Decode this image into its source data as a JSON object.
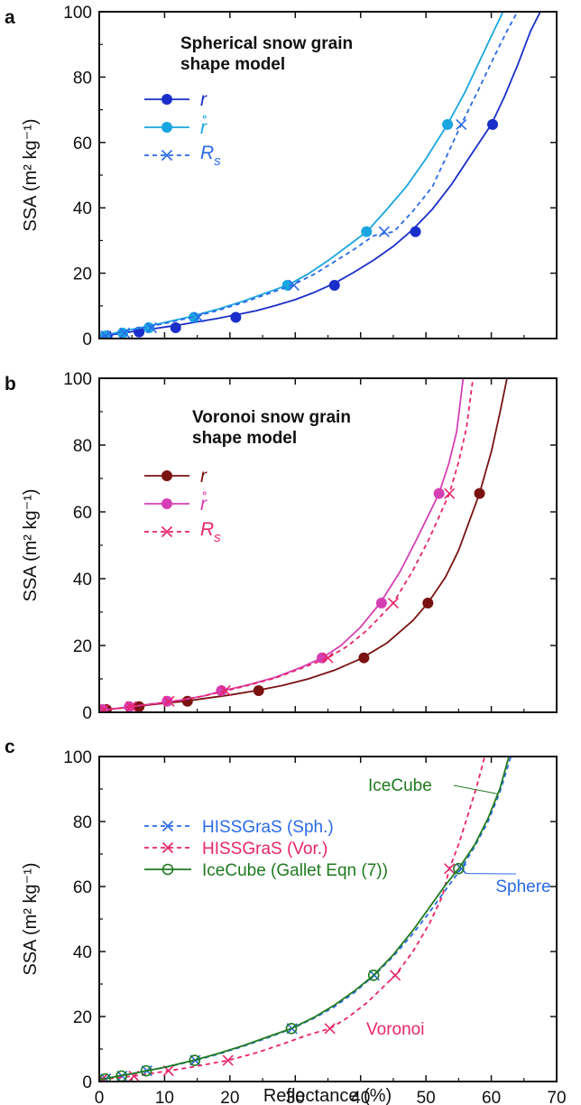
{
  "chart_data": [
    {
      "panel": "a",
      "type": "line",
      "title": "Spherical snow grain shape model",
      "title_lines": [
        "Spherical snow grain",
        "shape model"
      ],
      "xlabel": "",
      "ylabel": "SSA (m² kg⁻¹)",
      "xlim": [
        0,
        70
      ],
      "ylim": [
        0,
        100
      ],
      "y_ticks": [
        0,
        20,
        40,
        60,
        80,
        100
      ],
      "grid": false,
      "legend_position": "top-left",
      "series": [
        {
          "name": "r",
          "color": "#1a2fc9",
          "line_style": "solid",
          "marker": "filled-circle",
          "curve_x": [
            0.3,
            1,
            2,
            4,
            6,
            8,
            10,
            12,
            15,
            18,
            21,
            24,
            27,
            30,
            33,
            36,
            39,
            42,
            45,
            48,
            51,
            54,
            57,
            60,
            62,
            64,
            66,
            67.5
          ],
          "curve_y": [
            0.5,
            0.8,
            1.2,
            1.8,
            2.4,
            2.9,
            3.5,
            4.1,
            5.1,
            6.1,
            7.3,
            8.5,
            10.1,
            11.9,
            14.2,
            16.9,
            20.3,
            24.0,
            28.2,
            33.4,
            39.6,
            47.4,
            56.5,
            65.5,
            74.0,
            83.5,
            94.0,
            100
          ],
          "marker_x": [
            1.2,
            6.1,
            11.7,
            20.9,
            36.0,
            48.4,
            60.2
          ],
          "marker_y": [
            0.8,
            2.0,
            3.3,
            6.5,
            16.3,
            32.7,
            65.5
          ]
        },
        {
          "name": "r̊",
          "color": "#1aa6e0",
          "line_style": "solid",
          "marker": "filled-circle",
          "curve_x": [
            0.3,
            1,
            2,
            3,
            5,
            7,
            10,
            14,
            18,
            22,
            26,
            29,
            32,
            35,
            38,
            41,
            44,
            47,
            50,
            53.3,
            56,
            58,
            60,
            61.8
          ],
          "curve_y": [
            0.7,
            1.0,
            1.5,
            2.0,
            2.8,
            3.6,
            4.9,
            6.7,
            8.9,
            11.4,
            14.3,
            16.5,
            19.8,
            23.8,
            28.3,
            32.8,
            39.5,
            46.5,
            55.0,
            65.5,
            75.5,
            84.0,
            92.5,
            100
          ],
          "marker_x": [
            0.9,
            3.6,
            7.6,
            14.5,
            28.8,
            40.9,
            53.3
          ],
          "marker_y": [
            0.8,
            1.7,
            3.3,
            6.5,
            16.3,
            32.7,
            65.5
          ]
        },
        {
          "name": "Rs",
          "color": "#2a6ae8",
          "line_style": "dashed",
          "marker": "x",
          "curve_x": [
            0.3,
            1,
            2,
            3,
            5,
            7,
            10,
            14,
            18,
            22,
            26,
            29.5,
            33,
            36,
            39,
            42,
            45.1,
            48,
            51,
            55.4,
            58,
            60.5,
            62.5,
            64.0
          ],
          "curve_y": [
            0.6,
            0.9,
            1.4,
            1.9,
            2.7,
            3.4,
            4.6,
            6.4,
            8.5,
            11.0,
            13.8,
            16.3,
            19.8,
            23.5,
            27.3,
            31.5,
            32.7,
            39.0,
            46.5,
            65.5,
            76.0,
            86.5,
            94.5,
            100
          ],
          "marker_x": [
            1.0,
            3.9,
            8.0,
            15.2,
            29.8,
            43.6,
            55.4
          ],
          "marker_y": [
            0.8,
            1.7,
            3.3,
            6.5,
            16.3,
            32.7,
            65.5
          ]
        }
      ]
    },
    {
      "panel": "b",
      "type": "line",
      "title": "Voronoi snow grain shape model",
      "title_lines": [
        "Voronoi snow grain",
        "shape model"
      ],
      "xlabel": "",
      "ylabel": "SSA (m² kg⁻¹)",
      "xlim": [
        0,
        70
      ],
      "ylim": [
        0,
        100
      ],
      "y_ticks": [
        0,
        20,
        40,
        60,
        80,
        100
      ],
      "grid": false,
      "legend_position": "top-left",
      "series": [
        {
          "name": "r",
          "color": "#7a1212",
          "line_style": "solid",
          "marker": "filled-circle",
          "curve_x": [
            0.3,
            2,
            4,
            6,
            8,
            10,
            13,
            16,
            20,
            24,
            28,
            32,
            36,
            40,
            44,
            48,
            50.3,
            53,
            55,
            58.2,
            60,
            61.3,
            62.4
          ],
          "curve_y": [
            0.5,
            1.0,
            1.4,
            1.8,
            2.3,
            2.7,
            3.3,
            4.1,
            5.2,
            6.5,
            8.0,
            10.0,
            12.6,
            16.0,
            20.7,
            27.5,
            32.7,
            40.5,
            48.5,
            65.5,
            78.0,
            89.5,
            100
          ],
          "marker_x": [
            1.1,
            6.1,
            13.5,
            24.4,
            40.5,
            50.3,
            58.2
          ],
          "marker_y": [
            0.8,
            1.7,
            3.3,
            6.5,
            16.3,
            32.7,
            65.5
          ]
        },
        {
          "name": "r̊",
          "color": "#d63fb4",
          "line_style": "solid",
          "marker": "filled-circle",
          "curve_x": [
            0.3,
            2,
            4,
            6,
            9,
            12,
            16,
            19,
            23,
            27,
            31,
            34.1,
            37,
            40,
            43,
            46,
            48.5,
            50.5,
            52.0,
            53.5,
            54.7,
            55.7
          ],
          "curve_y": [
            0.5,
            1.0,
            1.5,
            2.0,
            2.7,
            3.5,
            4.9,
            6.5,
            8.3,
            10.5,
            13.5,
            16.3,
            20.0,
            25.5,
            32.7,
            42.0,
            51.5,
            59.5,
            65.5,
            74.5,
            84.0,
            100
          ],
          "marker_x": [
            0.5,
            4.6,
            10.4,
            18.7,
            34.1,
            43.2,
            52.0
          ],
          "marker_y": [
            0.8,
            1.7,
            3.3,
            6.5,
            16.3,
            32.7,
            65.5
          ]
        },
        {
          "name": "Rs",
          "color": "#e8246a",
          "line_style": "dashed",
          "marker": "x",
          "curve_x": [
            0.3,
            2,
            4,
            6,
            9,
            12,
            16,
            19.5,
            23,
            27,
            31,
            35.0,
            38,
            41,
            45.0,
            48,
            50.5,
            52,
            53.6,
            55.0,
            56.2,
            57.2
          ],
          "curve_y": [
            0.5,
            1.0,
            1.5,
            2.0,
            2.7,
            3.5,
            4.9,
            6.5,
            8.2,
            10.3,
            13.2,
            16.3,
            19.8,
            24.6,
            32.7,
            42.5,
            52.0,
            58.5,
            65.5,
            75.0,
            85.0,
            100
          ],
          "marker_x": [
            0.7,
            4.9,
            10.7,
            19.3,
            35.0,
            45.0,
            53.6
          ],
          "marker_y": [
            0.8,
            1.7,
            3.3,
            6.5,
            16.3,
            32.7,
            65.5
          ]
        }
      ]
    },
    {
      "panel": "c",
      "type": "line",
      "title": "",
      "xlabel": "Reflectance (%)",
      "ylabel": "SSA (m² kg⁻¹)",
      "xlim": [
        0,
        70
      ],
      "ylim": [
        0,
        100
      ],
      "x_ticks": [
        0,
        10,
        20,
        30,
        40,
        50,
        60,
        70
      ],
      "y_ticks": [
        0,
        20,
        40,
        60,
        80,
        100
      ],
      "grid": false,
      "legend_position": "top-left",
      "series": [
        {
          "name": "HISSGraS (Sph.)",
          "color": "#2a6ae8",
          "line_style": "dashed",
          "marker": "x",
          "curve_x": [
            0.3,
            1,
            3,
            5,
            7.3,
            10,
            14.7,
            18,
            22,
            26,
            29.5,
            33,
            36,
            39,
            42.1,
            45,
            48,
            50.5,
            53,
            55.4,
            57.5,
            59.5,
            61.3,
            63.0
          ],
          "curve_y": [
            0.6,
            0.9,
            1.7,
            2.4,
            3.3,
            4.3,
            6.5,
            8.3,
            10.8,
            13.6,
            16.3,
            19.6,
            23.0,
            27.3,
            32.7,
            38.5,
            45.5,
            52.0,
            59.0,
            65.5,
            72.5,
            80.0,
            89.0,
            100
          ],
          "marker_x": [
            1.0,
            3.5,
            7.3,
            14.7,
            29.5,
            42.1,
            55.4
          ],
          "marker_y": [
            0.8,
            1.7,
            3.3,
            6.5,
            16.3,
            32.7,
            65.5
          ]
        },
        {
          "name": "HISSGraS (Vor.)",
          "color": "#e8246a",
          "line_style": "dashed",
          "marker": "x",
          "curve_x": [
            0.3,
            1,
            3,
            5.3,
            7,
            10.6,
            14,
            19.7,
            24,
            28,
            32,
            35.3,
            38,
            41,
            45.3,
            48,
            50.5,
            52.5,
            53.6,
            55.0,
            56.5,
            57.8,
            59.0
          ],
          "curve_y": [
            0.5,
            0.8,
            1.2,
            1.7,
            2.2,
            3.3,
            4.4,
            6.5,
            8.8,
            11.5,
            14.4,
            16.3,
            19.6,
            24.3,
            32.7,
            40.0,
            48.5,
            57.0,
            65.5,
            73.0,
            82.5,
            91.0,
            100
          ],
          "marker_x": [
            0.5,
            5.3,
            10.6,
            19.7,
            35.3,
            45.3,
            53.6
          ],
          "marker_y": [
            0.8,
            1.7,
            3.3,
            6.5,
            16.3,
            32.7,
            65.5
          ]
        },
        {
          "name": "IceCube (Gallet Eqn (7))",
          "color": "#1f7a1f",
          "line_style": "solid",
          "marker": "open-circle",
          "curve_x": [
            0.3,
            1,
            3,
            5,
            7.2,
            10,
            14.6,
            18,
            22,
            26,
            29.4,
            33,
            36,
            39,
            42.0,
            45,
            48,
            50.5,
            53,
            55.0,
            57.5,
            59.5,
            61.3,
            62.7
          ],
          "curve_y": [
            0.6,
            0.9,
            1.7,
            2.4,
            3.3,
            4.4,
            6.6,
            8.5,
            11.0,
            13.9,
            16.3,
            19.9,
            23.5,
            27.8,
            32.7,
            39.0,
            46.5,
            53.5,
            60.5,
            65.5,
            73.0,
            81.0,
            90.0,
            100
          ],
          "marker_x": [
            0.9,
            3.4,
            7.2,
            14.6,
            29.4,
            42.0,
            55.0
          ],
          "marker_y": [
            0.8,
            1.7,
            3.3,
            6.5,
            16.3,
            32.7,
            65.5
          ]
        }
      ],
      "annotations": [
        {
          "text": "IceCube",
          "color": "#1f7a1f",
          "anchor_x": 61.0,
          "anchor_y": 88.5
        },
        {
          "text": "Sphere",
          "color": "#2a6ae8",
          "anchor_x": 56.2,
          "anchor_y": 64.0
        },
        {
          "text": "Voronoi",
          "color": "#e8246a"
        }
      ]
    }
  ]
}
